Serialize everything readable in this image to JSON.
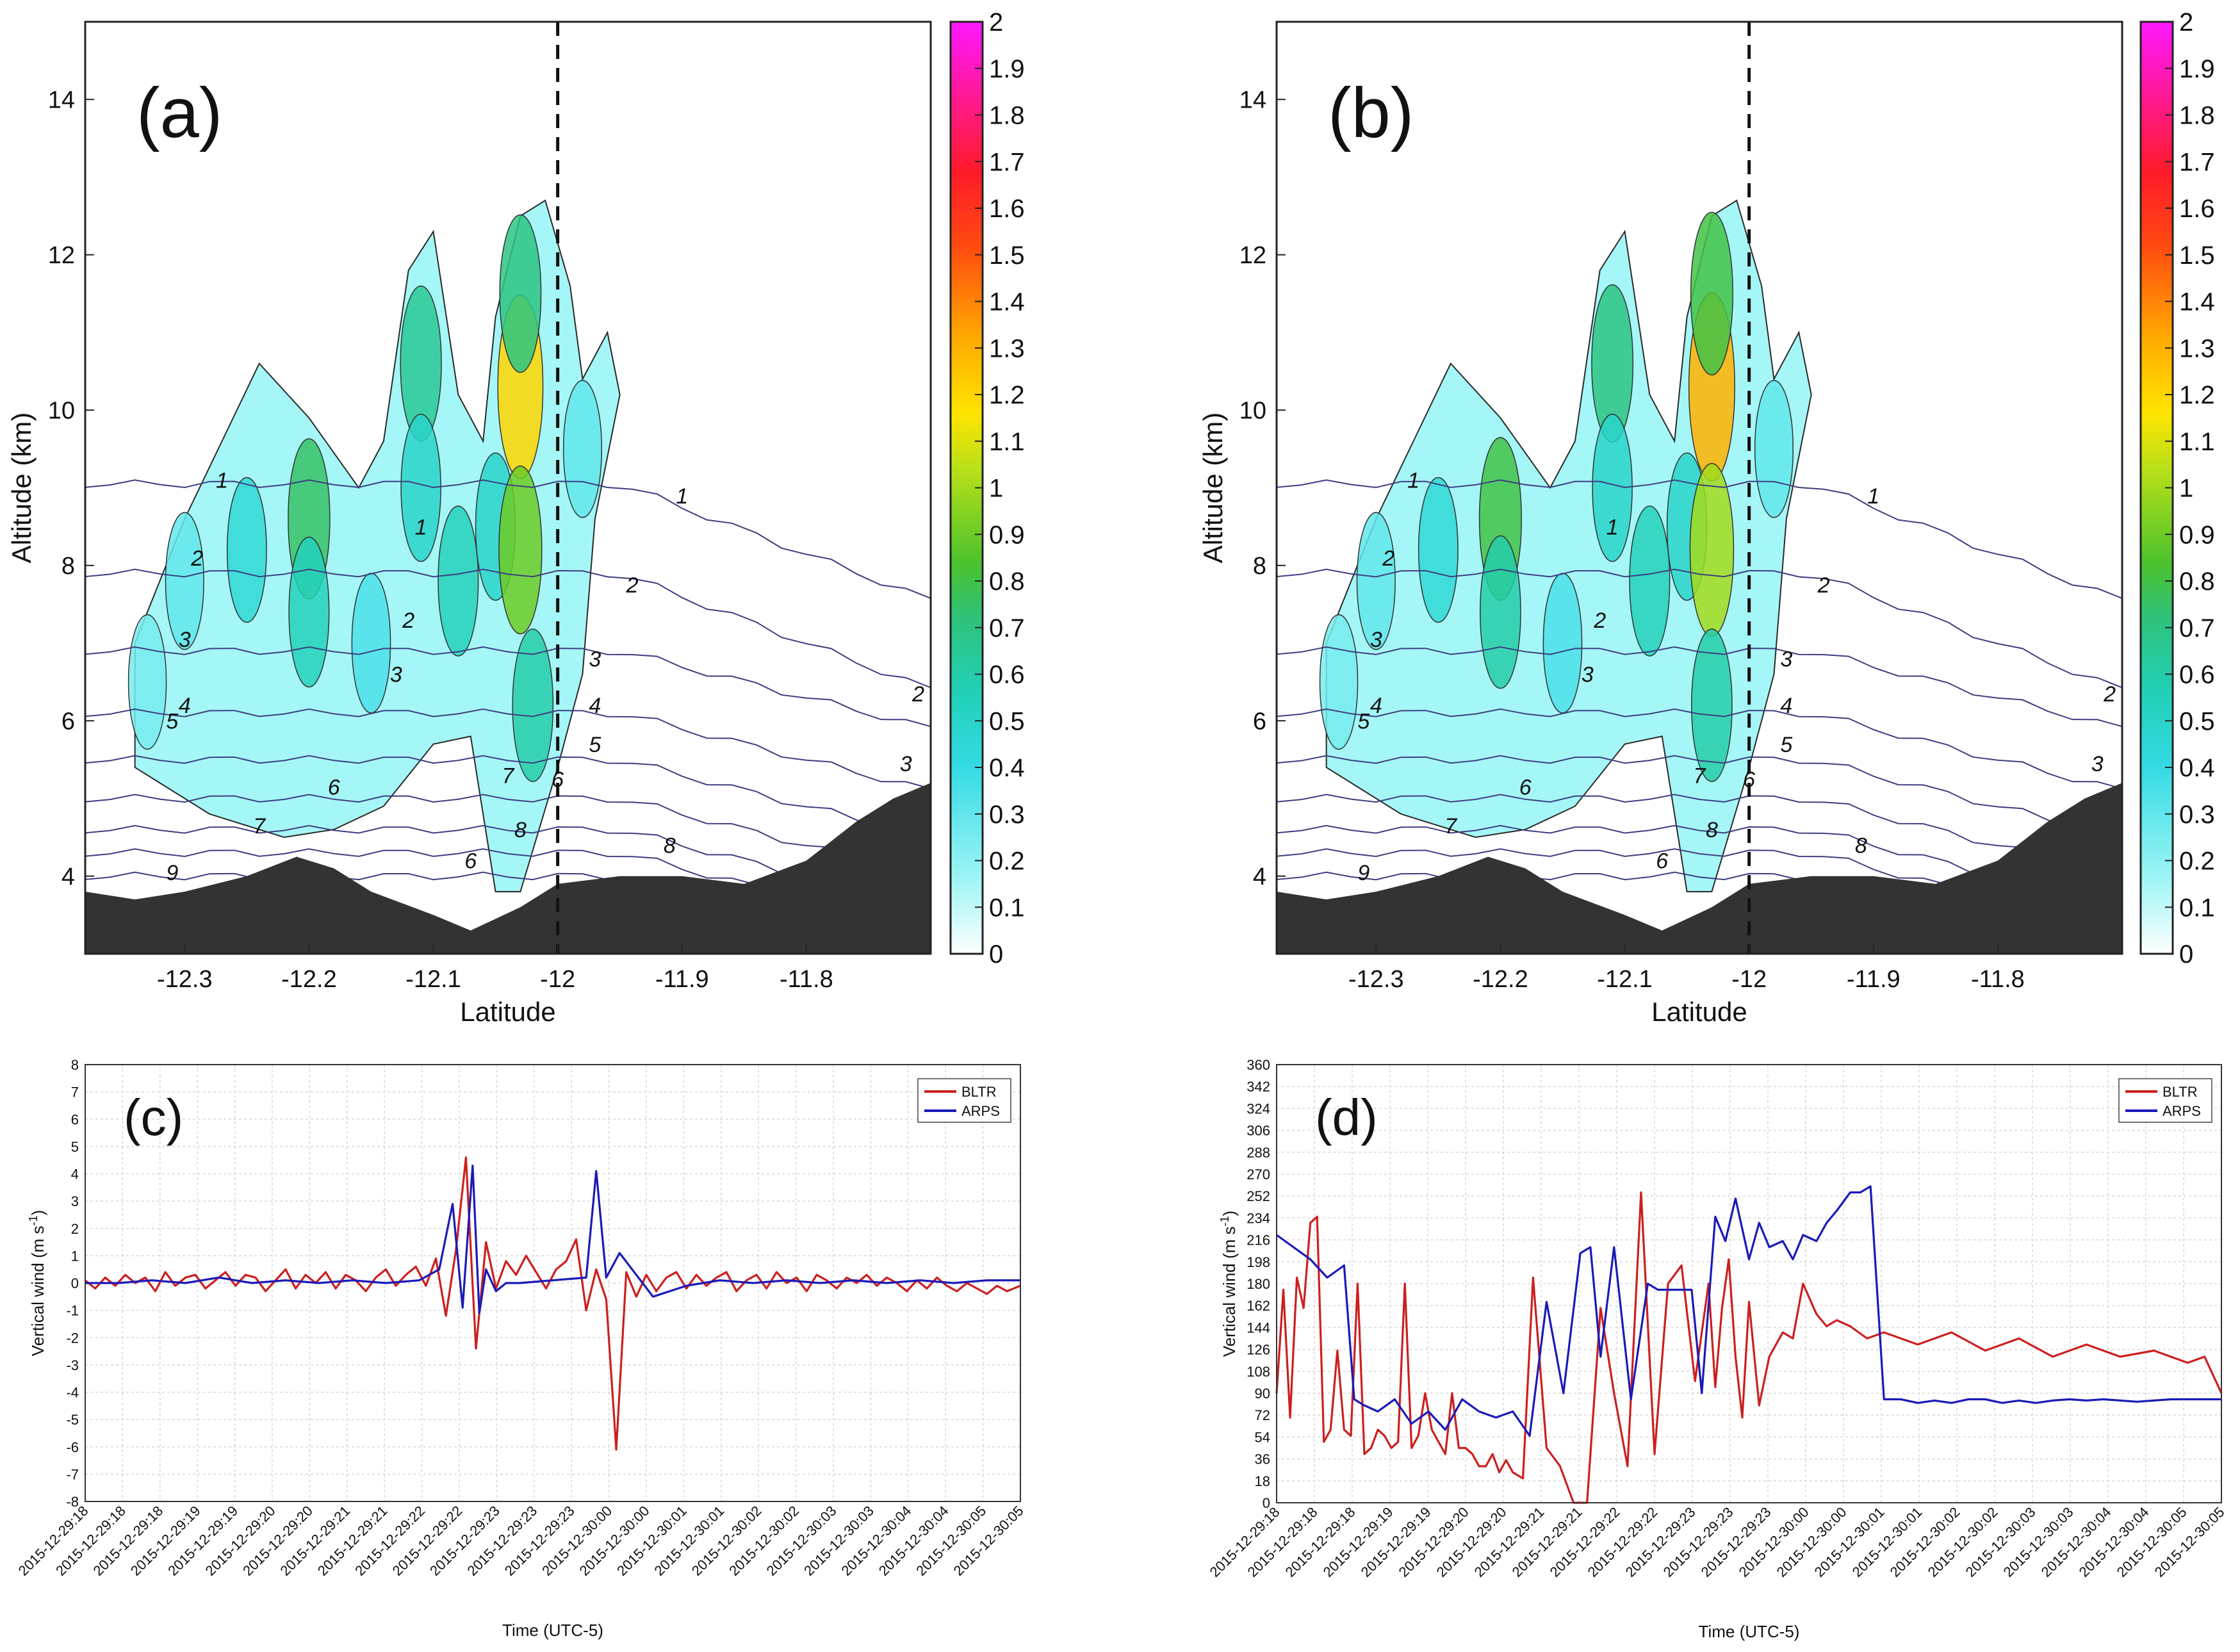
{
  "panels": {
    "a": {
      "label": "(a)"
    },
    "b": {
      "label": "(b)"
    },
    "c": {
      "label": "(c)"
    },
    "d": {
      "label": "(d)"
    }
  },
  "colors": {
    "bltr": "#cc1f1f",
    "arps": "#1a1ab8",
    "terrain": "#333333",
    "contour": "#3d3d80"
  },
  "chart_data": [
    {
      "id": "a",
      "type": "heatmap",
      "xlabel": "Latitude",
      "ylabel": "Altitude (km)",
      "xlim": [
        -12.38,
        -11.7
      ],
      "ylim": [
        3,
        15
      ],
      "xticks": [
        -12.3,
        -12.2,
        -12.1,
        -12,
        -11.9,
        -11.8
      ],
      "xtick_labels": [
        "-12.3",
        "-12.2",
        "-12.1",
        "-12",
        "-11.9",
        "-11.8"
      ],
      "yticks": [
        4,
        6,
        8,
        10,
        12,
        14
      ],
      "vline_x": -12,
      "colorbar": {
        "ticks": [
          "0",
          "0.1",
          "0.2",
          "0.3",
          "0.4",
          "0.5",
          "0.6",
          "0.7",
          "0.8",
          "0.9",
          "1",
          "1.1",
          "1.2",
          "1.3",
          "1.4",
          "1.5",
          "1.6",
          "1.7",
          "1.8",
          "1.9",
          "2"
        ],
        "range": [
          0,
          2
        ]
      },
      "contour_labels": [
        "1",
        "2",
        "3",
        "4",
        "5",
        "6",
        "7",
        "8",
        "9",
        "1",
        "2",
        "3",
        "4",
        "5",
        "6",
        "7",
        "8",
        "6",
        "1",
        "2",
        "3",
        "2",
        "3"
      ],
      "cells": [
        {
          "x": -12.33,
          "y": 6.5,
          "v": 0.25
        },
        {
          "x": -12.3,
          "y": 7.8,
          "v": 0.3
        },
        {
          "x": -12.25,
          "y": 8.2,
          "v": 0.45
        },
        {
          "x": -12.2,
          "y": 8.6,
          "v": 0.75
        },
        {
          "x": -12.2,
          "y": 7.4,
          "v": 0.55
        },
        {
          "x": -12.15,
          "y": 7.0,
          "v": 0.35
        },
        {
          "x": -12.11,
          "y": 10.6,
          "v": 0.65
        },
        {
          "x": -12.11,
          "y": 9.0,
          "v": 0.5
        },
        {
          "x": -12.08,
          "y": 7.8,
          "v": 0.55
        },
        {
          "x": -12.05,
          "y": 8.5,
          "v": 0.5
        },
        {
          "x": -12.03,
          "y": 10.3,
          "v": 1.2
        },
        {
          "x": -12.03,
          "y": 8.2,
          "v": 0.9
        },
        {
          "x": -12.03,
          "y": 11.5,
          "v": 0.7
        },
        {
          "x": -12.02,
          "y": 6.2,
          "v": 0.6
        },
        {
          "x": -11.98,
          "y": 9.5,
          "v": 0.3
        }
      ],
      "terrain": {
        "x": [
          -12.38,
          -12.34,
          -12.3,
          -12.25,
          -12.21,
          -12.18,
          -12.15,
          -12.1,
          -12.07,
          -12.03,
          -12.0,
          -11.95,
          -11.9,
          -11.85,
          -11.8,
          -11.76,
          -11.73,
          -11.7
        ],
        "y": [
          3.8,
          3.7,
          3.8,
          4.0,
          4.25,
          4.1,
          3.8,
          3.5,
          3.3,
          3.6,
          3.9,
          4.0,
          4.0,
          3.9,
          4.2,
          4.7,
          5.0,
          5.2
        ]
      }
    },
    {
      "id": "b",
      "type": "heatmap",
      "xlabel": "Latitude",
      "ylabel": "Altitude (km)",
      "xlim": [
        -12.38,
        -11.7
      ],
      "ylim": [
        3,
        15
      ],
      "xticks": [
        -12.3,
        -12.2,
        -12.1,
        -12,
        -11.9,
        -11.8
      ],
      "xtick_labels": [
        "-12.3",
        "-12.2",
        "-12.1",
        "-12",
        "-11.9",
        "-11.8"
      ],
      "yticks": [
        4,
        6,
        8,
        10,
        12,
        14
      ],
      "vline_x": -12,
      "colorbar": {
        "ticks": [
          "0",
          "0.1",
          "0.2",
          "0.3",
          "0.4",
          "0.5",
          "0.6",
          "0.7",
          "0.8",
          "0.9",
          "1",
          "1.1",
          "1.2",
          "1.3",
          "1.4",
          "1.5",
          "1.6",
          "1.7",
          "1.8",
          "1.9",
          "2"
        ],
        "range": [
          0,
          2
        ]
      },
      "contour_labels": [
        "1",
        "2",
        "3",
        "4",
        "5",
        "6",
        "7",
        "8",
        "9",
        "1",
        "2",
        "3",
        "4",
        "5",
        "6",
        "7",
        "8",
        "6",
        "1",
        "2",
        "3",
        "2",
        "3"
      ],
      "cells": [
        {
          "x": -12.33,
          "y": 6.5,
          "v": 0.25
        },
        {
          "x": -12.3,
          "y": 7.8,
          "v": 0.3
        },
        {
          "x": -12.25,
          "y": 8.2,
          "v": 0.45
        },
        {
          "x": -12.2,
          "y": 8.6,
          "v": 0.8
        },
        {
          "x": -12.2,
          "y": 7.4,
          "v": 0.6
        },
        {
          "x": -12.15,
          "y": 7.0,
          "v": 0.35
        },
        {
          "x": -12.11,
          "y": 10.6,
          "v": 0.7
        },
        {
          "x": -12.11,
          "y": 9.0,
          "v": 0.5
        },
        {
          "x": -12.08,
          "y": 7.8,
          "v": 0.55
        },
        {
          "x": -12.05,
          "y": 8.5,
          "v": 0.5
        },
        {
          "x": -12.03,
          "y": 10.3,
          "v": 1.3
        },
        {
          "x": -12.03,
          "y": 8.2,
          "v": 1.0
        },
        {
          "x": -12.03,
          "y": 11.5,
          "v": 0.8
        },
        {
          "x": -12.03,
          "y": 6.2,
          "v": 0.6
        },
        {
          "x": -11.98,
          "y": 9.5,
          "v": 0.3
        }
      ],
      "terrain": {
        "x": [
          -12.38,
          -12.34,
          -12.3,
          -12.25,
          -12.21,
          -12.18,
          -12.15,
          -12.1,
          -12.07,
          -12.03,
          -12.0,
          -11.95,
          -11.9,
          -11.85,
          -11.8,
          -11.76,
          -11.73,
          -11.7
        ],
        "y": [
          3.8,
          3.7,
          3.8,
          4.0,
          4.25,
          4.1,
          3.8,
          3.5,
          3.3,
          3.6,
          3.9,
          4.0,
          4.0,
          3.9,
          4.2,
          4.7,
          5.0,
          5.2
        ]
      }
    },
    {
      "id": "c",
      "type": "line",
      "xlabel": "Time (UTC-5)",
      "ylabel": "Vertical wind (m s",
      "ylabel_sup": "-1",
      "ylabel_end": ")",
      "ylim": [
        -8,
        8
      ],
      "yticks": [
        -8,
        -7,
        -6,
        -5,
        -4,
        -3,
        -2,
        -1,
        0,
        1,
        2,
        3,
        4,
        5,
        6,
        7,
        8
      ],
      "xlim": [
        0,
        28
      ],
      "x_tick_labels": [
        "2015-12-29:18",
        "2015-12-29:18",
        "2015-12-29:18",
        "2015-12-29:19",
        "2015-12-29:19",
        "2015-12-29:20",
        "2015-12-29:20",
        "2015-12-29:21",
        "2015-12-29:21",
        "2015-12-29:22",
        "2015-12-29:22",
        "2015-12-29:23",
        "2015-12-29:23",
        "2015-12-29:23",
        "2015-12-30:00",
        "2015-12-30:00",
        "2015-12-30:01",
        "2015-12-30:01",
        "2015-12-30:02",
        "2015-12-30:02",
        "2015-12-30:03",
        "2015-12-30:03",
        "2015-12-30:04",
        "2015-12-30:04",
        "2015-12-30:05",
        "2015-12-30:05"
      ],
      "legend": [
        "BLTR",
        "ARPS"
      ],
      "series": [
        {
          "name": "BLTR",
          "x": [
            0,
            0.3,
            0.6,
            0.9,
            1.2,
            1.5,
            1.8,
            2.1,
            2.4,
            2.7,
            3,
            3.3,
            3.6,
            3.9,
            4.2,
            4.5,
            4.8,
            5.1,
            5.4,
            5.7,
            6,
            6.3,
            6.6,
            6.9,
            7.2,
            7.5,
            7.8,
            8.1,
            8.4,
            8.7,
            9,
            9.3,
            9.6,
            9.9,
            10.2,
            10.5,
            10.8,
            11.1,
            11.4,
            11.7,
            12,
            12.3,
            12.6,
            12.9,
            13.2,
            13.5,
            13.8,
            14.1,
            14.4,
            14.7,
            15,
            15.3,
            15.6,
            15.9,
            16.2,
            16.5,
            16.8,
            17.1,
            17.4,
            17.7,
            18,
            18.3,
            18.6,
            18.9,
            19.2,
            19.5,
            19.8,
            20.1,
            20.4,
            20.7,
            21,
            21.3,
            21.6,
            21.9,
            22.2,
            22.5,
            22.8,
            23.1,
            23.4,
            23.7,
            24,
            24.3,
            24.6,
            24.9,
            25.2,
            25.5,
            25.8,
            26.1,
            26.4,
            26.7,
            27,
            27.3,
            27.6,
            28
          ],
          "y": [
            0.1,
            -0.2,
            0.2,
            -0.1,
            0.3,
            0,
            0.2,
            -0.3,
            0.4,
            -0.1,
            0.2,
            0.3,
            -0.2,
            0.1,
            0.4,
            -0.1,
            0.3,
            0.2,
            -0.3,
            0.1,
            0.5,
            -0.2,
            0.3,
            0,
            0.4,
            -0.2,
            0.3,
            0.1,
            -0.3,
            0.2,
            0.5,
            -0.1,
            0.3,
            0.6,
            -0.1,
            0.9,
            -1.2,
            1.2,
            4.6,
            -2.4,
            1.5,
            -0.2,
            0.8,
            0.3,
            1.0,
            0.4,
            -0.2,
            0.5,
            0.8,
            1.6,
            -1.0,
            0.5,
            -0.6,
            -6.1,
            0.4,
            -0.5,
            0.3,
            -0.3,
            0.2,
            0.4,
            -0.2,
            0.3,
            -0.1,
            0.2,
            0.4,
            -0.3,
            0.1,
            0.3,
            -0.2,
            0.4,
            0,
            0.2,
            -0.3,
            0.3,
            0.1,
            -0.2,
            0.2,
            0,
            0.3,
            -0.1,
            0.2,
            0,
            -0.3,
            0.1,
            -0.2,
            0.2,
            -0.1,
            -0.3,
            0,
            -0.2,
            -0.4,
            -0.1,
            -0.3,
            -0.1
          ]
        },
        {
          "name": "ARPS",
          "x": [
            0,
            1,
            2,
            3,
            4,
            5,
            6,
            7,
            8,
            9,
            10,
            10.6,
            11,
            11.3,
            11.6,
            11.8,
            12,
            12.3,
            12.6,
            13,
            14,
            15,
            15.3,
            15.6,
            16,
            16.5,
            17,
            18,
            19,
            20,
            21,
            22,
            23,
            24,
            25,
            26,
            27,
            28
          ],
          "y": [
            0,
            0,
            0.1,
            0,
            0.2,
            0,
            0.1,
            0,
            0.1,
            0,
            0.1,
            0.5,
            2.9,
            -0.9,
            4.3,
            -1.1,
            0.5,
            -0.3,
            0,
            0,
            0.1,
            0.2,
            4.1,
            0.2,
            1.1,
            0.3,
            -0.5,
            -0.1,
            0.1,
            0,
            0.1,
            0,
            0.1,
            0,
            0.1,
            0,
            0.1,
            0.1
          ]
        }
      ]
    },
    {
      "id": "d",
      "type": "line",
      "xlabel": "Time (UTC-5)",
      "ylabel": "Vertical wind (m s",
      "ylabel_sup": "-1",
      "ylabel_end": ")",
      "ylim": [
        0,
        360
      ],
      "yticks": [
        0,
        18,
        36,
        54,
        72,
        90,
        108,
        126,
        144,
        162,
        180,
        198,
        216,
        234,
        252,
        270,
        288,
        306,
        324,
        342,
        360
      ],
      "xlim": [
        0,
        28
      ],
      "x_tick_labels": [
        "2015-12-29:18",
        "2015-12-29:18",
        "2015-12-29:18",
        "2015-12-29:19",
        "2015-12-29:19",
        "2015-12-29:20",
        "2015-12-29:20",
        "2015-12-29:21",
        "2015-12-29:21",
        "2015-12-29:22",
        "2015-12-29:22",
        "2015-12-29:23",
        "2015-12-29:23",
        "2015-12-29:23",
        "2015-12-30:00",
        "2015-12-30:00",
        "2015-12-30:01",
        "2015-12-30:01",
        "2015-12-30:02",
        "2015-12-30:02",
        "2015-12-30:03",
        "2015-12-30:03",
        "2015-12-30:04",
        "2015-12-30:04",
        "2015-12-30:05",
        "2015-12-30:05"
      ],
      "legend": [
        "BLTR",
        "ARPS"
      ],
      "series": [
        {
          "name": "BLTR",
          "x": [
            0,
            0.2,
            0.4,
            0.6,
            0.8,
            1.0,
            1.2,
            1.4,
            1.6,
            1.8,
            2.0,
            2.2,
            2.4,
            2.6,
            2.8,
            3.0,
            3.2,
            3.4,
            3.6,
            3.8,
            4.0,
            4.2,
            4.4,
            4.6,
            4.8,
            5.0,
            5.2,
            5.4,
            5.6,
            5.8,
            6.0,
            6.2,
            6.4,
            6.6,
            6.8,
            7.0,
            7.3,
            7.6,
            8.0,
            8.4,
            8.8,
            9.2,
            9.6,
            10.0,
            10.4,
            10.8,
            11.2,
            11.6,
            12.0,
            12.4,
            12.8,
            13.0,
            13.2,
            13.4,
            13.6,
            13.8,
            14.0,
            14.3,
            14.6,
            15.0,
            15.3,
            15.6,
            16.0,
            16.3,
            16.6,
            17.0,
            17.5,
            18,
            19,
            20,
            21,
            22,
            23,
            24,
            25,
            26,
            27,
            27.5,
            28
          ],
          "y": [
            90,
            175,
            70,
            185,
            160,
            230,
            235,
            50,
            60,
            125,
            60,
            55,
            180,
            40,
            45,
            60,
            55,
            45,
            50,
            180,
            45,
            55,
            90,
            60,
            50,
            40,
            90,
            45,
            45,
            40,
            30,
            30,
            40,
            25,
            35,
            25,
            20,
            185,
            45,
            30,
            0,
            0,
            160,
            90,
            30,
            255,
            40,
            180,
            195,
            100,
            180,
            95,
            160,
            200,
            120,
            70,
            165,
            80,
            120,
            140,
            135,
            180,
            155,
            145,
            150,
            145,
            135,
            140,
            130,
            140,
            125,
            135,
            120,
            130,
            120,
            125,
            115,
            120,
            90
          ]
        },
        {
          "name": "ARPS",
          "x": [
            0,
            0.5,
            1,
            1.5,
            2,
            2.3,
            2.6,
            3,
            3.5,
            4,
            4.5,
            5,
            5.5,
            6,
            6.5,
            7,
            7.5,
            8,
            8.5,
            9,
            9.3,
            9.6,
            10,
            10.5,
            11,
            11.3,
            11.6,
            12,
            12.3,
            12.6,
            13,
            13.3,
            13.6,
            14,
            14.3,
            14.6,
            15,
            15.3,
            15.6,
            16,
            16.3,
            16.6,
            17,
            17.3,
            17.6,
            18,
            18.5,
            19,
            19.5,
            20,
            20.5,
            21,
            21.5,
            22,
            22.5,
            23,
            23.5,
            24,
            24.5,
            25,
            25.5,
            26,
            26.5,
            27,
            27.5,
            28
          ],
          "y": [
            220,
            210,
            200,
            185,
            195,
            85,
            80,
            75,
            85,
            65,
            75,
            60,
            85,
            75,
            70,
            75,
            55,
            165,
            90,
            205,
            210,
            120,
            210,
            85,
            180,
            175,
            175,
            175,
            175,
            90,
            235,
            215,
            250,
            200,
            230,
            210,
            215,
            200,
            220,
            215,
            230,
            240,
            255,
            255,
            260,
            85,
            85,
            82,
            84,
            82,
            85,
            85,
            82,
            84,
            82,
            84,
            85,
            84,
            85,
            84,
            83,
            84,
            85,
            85,
            85,
            85
          ]
        }
      ]
    }
  ]
}
